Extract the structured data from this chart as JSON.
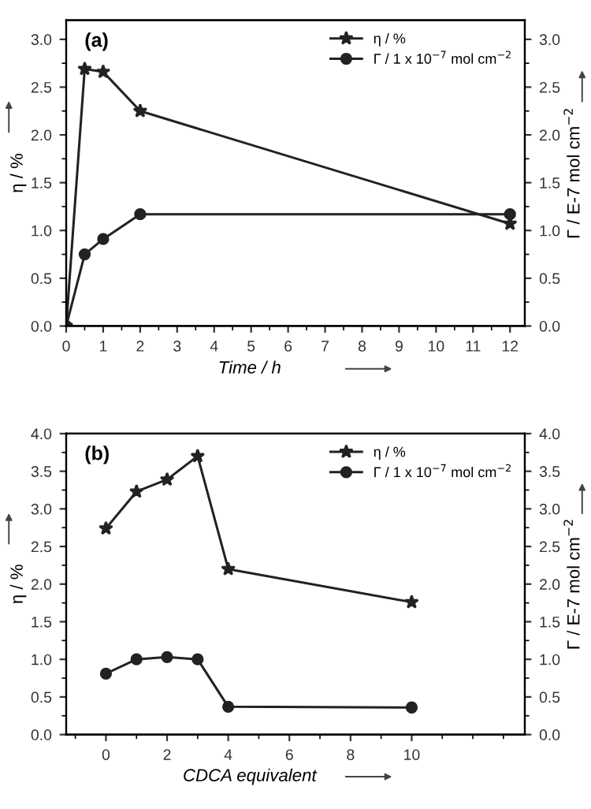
{
  "chart_data": [
    {
      "type": "line",
      "xlabel": "Time / h",
      "ylabel": "η / %",
      "y2label": "Γ / E-7 mol cm$^{−2}$",
      "annotations": [
        "(a)"
      ],
      "legend": "top right",
      "xlim": [
        0,
        12.4
      ],
      "xticks": [
        0,
        1,
        2,
        3,
        4,
        5,
        6,
        7,
        8,
        9,
        10,
        11,
        12
      ],
      "ylim": [
        0,
        3.2
      ],
      "yticks": [
        {
          "value": 0,
          "label": "0.0"
        },
        0.5,
        {
          "value": 1,
          "label": "1.0"
        },
        1.5,
        {
          "value": 2,
          "label": "2.0"
        },
        2.5,
        {
          "value": 3,
          "label": "3.0"
        }
      ],
      "y2lim": [
        0,
        3.2
      ],
      "y2ticks": [
        {
          "value": 0,
          "label": "0.0"
        },
        0.5,
        {
          "value": 1,
          "label": "1.0"
        },
        1.5,
        {
          "value": 2,
          "label": "2.0"
        },
        2.5,
        {
          "value": 3,
          "label": "3.0"
        }
      ],
      "series": [
        {
          "name": "η / %",
          "color": "#222222",
          "marker": "star",
          "x": [
            0,
            0.5,
            1,
            2,
            12
          ],
          "values": [
            0,
            2.69,
            2.66,
            2.25,
            1.07
          ]
        },
        {
          "name": "Γ / 1 x 10$^{−7}$ mol cm$^{−2}$",
          "color": "#222222",
          "marker": "circle",
          "axis": "y2",
          "x": [
            0,
            0.5,
            1,
            2,
            12
          ],
          "values": [
            0,
            0.75,
            0.91,
            1.17,
            1.17
          ]
        }
      ]
    },
    {
      "type": "line",
      "xlabel": "CDCA equivalent",
      "ylabel": "η / %",
      "y2label": "Γ / E-7 mol cm$^{−2}$",
      "annotations": [
        "(b)"
      ],
      "legend": "top right",
      "xlim": [
        -1.3,
        13.7
      ],
      "xticks": [
        0,
        2,
        4,
        6,
        8,
        10
      ],
      "ylim": [
        0,
        4
      ],
      "yticks": [
        {
          "value": 0,
          "label": "0.0"
        },
        0.5,
        {
          "value": 1,
          "label": "1.0"
        },
        1.5,
        {
          "value": 2,
          "label": "2.0"
        },
        2.5,
        {
          "value": 3,
          "label": "3.0"
        },
        3.5,
        {
          "value": 4,
          "label": "4.0"
        }
      ],
      "y2lim": [
        0,
        4
      ],
      "y2ticks": [
        {
          "value": 0,
          "label": "0.0"
        },
        0.5,
        {
          "value": 1,
          "label": "1.0"
        },
        1.5,
        {
          "value": 2,
          "label": "2.0"
        },
        2.5,
        {
          "value": 3,
          "label": "3.0"
        },
        3.5,
        {
          "value": 4,
          "label": "4.0"
        }
      ],
      "series": [
        {
          "name": "η / %",
          "color": "#222222",
          "marker": "star",
          "x": [
            0,
            1,
            2,
            3,
            4,
            10
          ],
          "values": [
            2.74,
            3.23,
            3.39,
            3.7,
            2.2,
            1.76
          ]
        },
        {
          "name": "Γ / 1 x 10$^{−7}$ mol cm$^{−2}$",
          "color": "#222222",
          "marker": "circle",
          "axis": "y2",
          "x": [
            0,
            1,
            2,
            3,
            4,
            10
          ],
          "values": [
            0.81,
            1.0,
            1.03,
            1.0,
            0.37,
            0.36
          ]
        }
      ]
    }
  ]
}
